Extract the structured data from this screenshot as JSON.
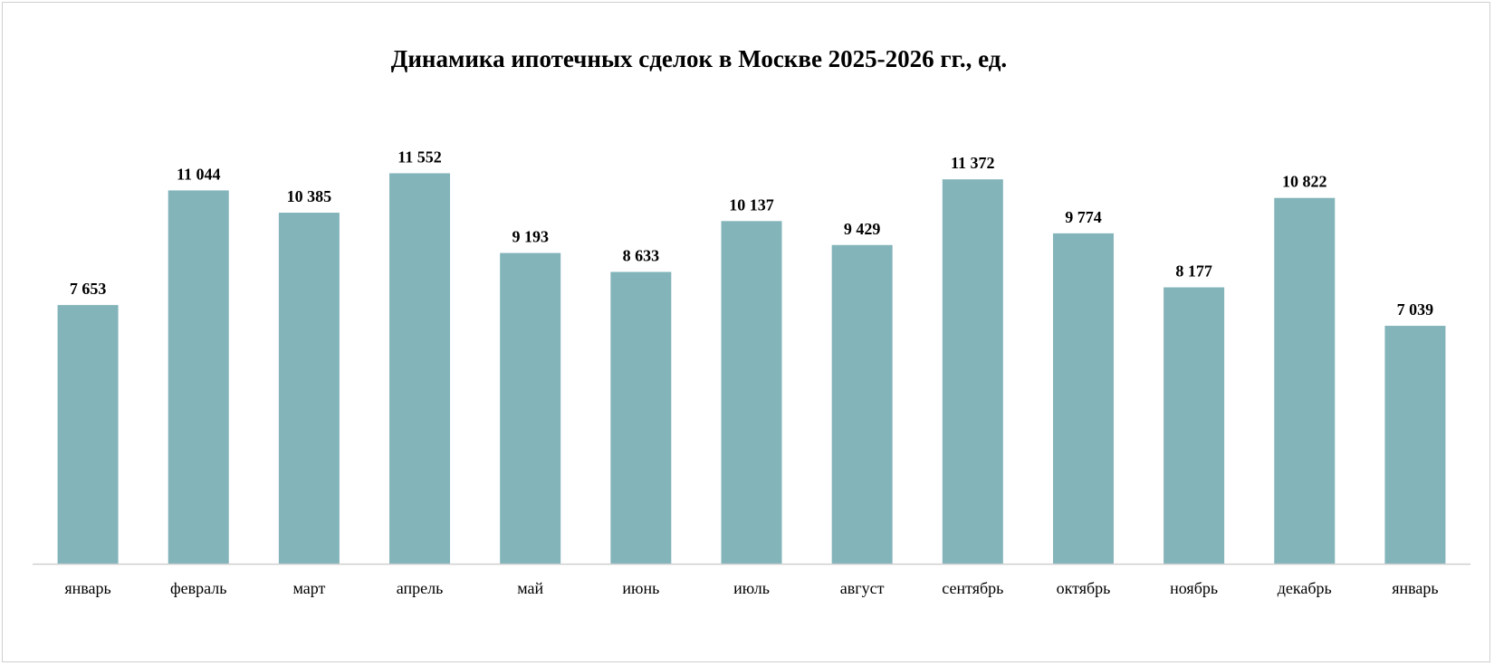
{
  "chart_data": {
    "type": "bar",
    "title": "Динамика ипотечных сделок в Москве 2025-2026 гг., ед.",
    "categories": [
      "январь",
      "февраль",
      "март",
      "апрель",
      "май",
      "июнь",
      "июль",
      "август",
      "сентябрь",
      "октябрь",
      "ноябрь",
      "декабрь",
      "январь"
    ],
    "values": [
      7653,
      11044,
      10385,
      11552,
      9193,
      8633,
      10137,
      9429,
      11372,
      9774,
      8177,
      10822,
      7039
    ],
    "value_labels": [
      "7 653",
      "11 044",
      "10 385",
      "11 552",
      "9 193",
      "8 633",
      "10 137",
      "9 429",
      "11 372",
      "9 774",
      "8 177",
      "10 822",
      "7 039"
    ],
    "xlabel": "",
    "ylabel": "",
    "ylim": [
      0,
      14000
    ],
    "grid": false,
    "y_axis_visible": false,
    "legend": "none",
    "bar_color": "#83b4ba",
    "axis_color": "#d0d0d0"
  }
}
